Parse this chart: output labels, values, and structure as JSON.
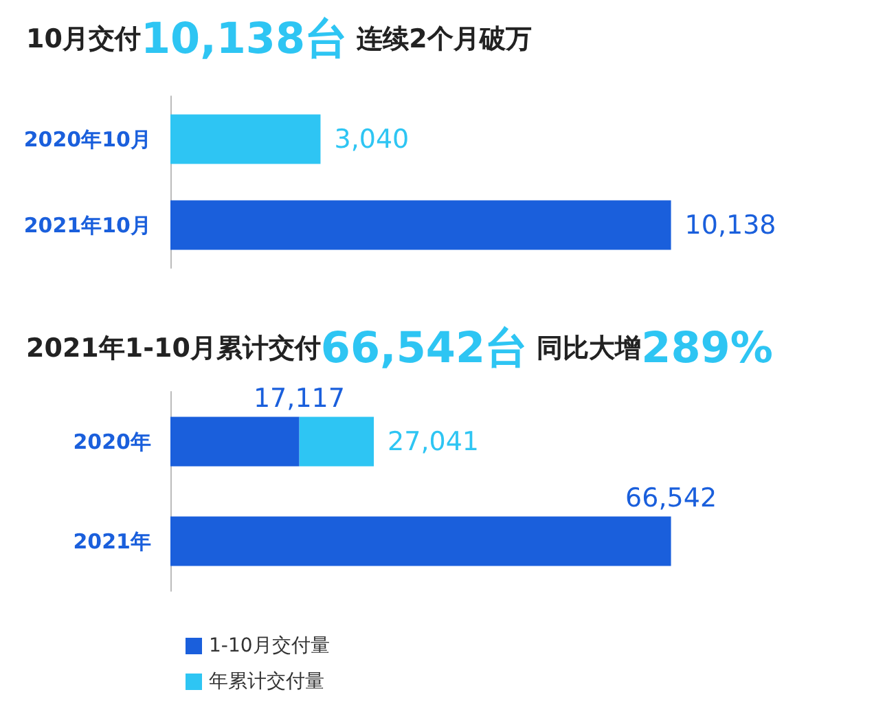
{
  "chart_data": [
    {
      "type": "bar",
      "orientation": "horizontal",
      "title": "10月交付10,138台 连续2个月破万",
      "categories": [
        "2020年10月",
        "2021年10月"
      ],
      "values": [
        3040,
        10138
      ],
      "value_labels": [
        "3,040",
        "10,138"
      ],
      "colors": [
        "#2ec5f3",
        "#1a5fdc"
      ],
      "legend": false
    },
    {
      "type": "bar",
      "orientation": "horizontal",
      "stacked": true,
      "title": "2021年1-10月累计交付66,542台 同比大增289%",
      "categories": [
        "2020年",
        "2021年"
      ],
      "series": [
        {
          "name": "1-10月交付量",
          "color": "#1a5fdc",
          "values": [
            17117,
            66542
          ],
          "value_labels": [
            "17,117",
            "66,542"
          ]
        },
        {
          "name": "年累计交付量",
          "color": "#2ec5f3",
          "values": [
            9924,
            null
          ]
        }
      ],
      "totals": [
        "27,041",
        null
      ],
      "legend": "bottom left"
    }
  ]
}
